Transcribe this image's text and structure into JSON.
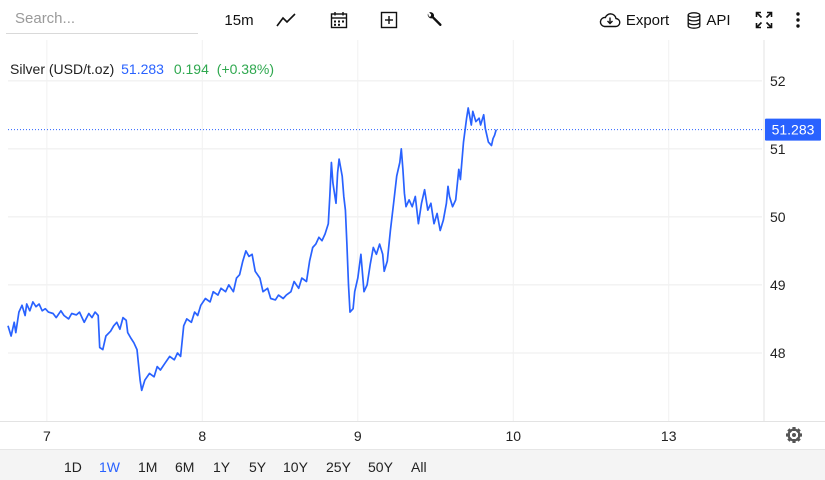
{
  "toolbar": {
    "search_placeholder": "Search...",
    "interval": "15m",
    "export_label": "Export",
    "api_label": "API"
  },
  "legend": {
    "name": "Silver (USD/t.oz)",
    "price": "51.283",
    "change": "0.194",
    "change_pct": "(+0.38%)"
  },
  "colors": {
    "line": "#2962ff",
    "change_positive": "#2fa84f"
  },
  "ranges": [
    "1D",
    "1W",
    "1M",
    "6M",
    "1Y",
    "5Y",
    "10Y",
    "25Y",
    "50Y",
    "All"
  ],
  "active_range": "1W",
  "chart_data": {
    "type": "line",
    "y_ticks": [
      "48",
      "49",
      "50",
      "51",
      "52"
    ],
    "ylim": [
      47.0,
      52.6
    ],
    "x_ticks": [
      {
        "label": "7",
        "x": 1
      },
      {
        "label": "8",
        "x": 2
      },
      {
        "label": "9",
        "x": 3
      },
      {
        "label": "10",
        "x": 4
      },
      {
        "label": "13",
        "x": 5
      }
    ],
    "xlim": [
      0.75,
      5.6
    ],
    "last_price_label": "51.283",
    "last_price": 51.283,
    "grid": true,
    "series": [
      {
        "values": [
          [
            0.75,
            48.4
          ],
          [
            0.77,
            48.25
          ],
          [
            0.79,
            48.45
          ],
          [
            0.8,
            48.3
          ],
          [
            0.82,
            48.6
          ],
          [
            0.84,
            48.7
          ],
          [
            0.86,
            48.55
          ],
          [
            0.87,
            48.72
          ],
          [
            0.89,
            48.62
          ],
          [
            0.91,
            48.75
          ],
          [
            0.93,
            48.68
          ],
          [
            0.95,
            48.72
          ],
          [
            0.97,
            48.62
          ],
          [
            0.99,
            48.65
          ],
          [
            1.01,
            48.6
          ],
          [
            1.04,
            48.58
          ],
          [
            1.06,
            48.52
          ],
          [
            1.09,
            48.62
          ],
          [
            1.11,
            48.55
          ],
          [
            1.14,
            48.5
          ],
          [
            1.16,
            48.58
          ],
          [
            1.19,
            48.56
          ],
          [
            1.21,
            48.6
          ],
          [
            1.24,
            48.45
          ],
          [
            1.27,
            48.58
          ],
          [
            1.29,
            48.52
          ],
          [
            1.31,
            48.6
          ],
          [
            1.33,
            48.55
          ],
          [
            1.34,
            48.08
          ],
          [
            1.36,
            48.05
          ],
          [
            1.38,
            48.25
          ],
          [
            1.41,
            48.32
          ],
          [
            1.43,
            48.4
          ],
          [
            1.45,
            48.45
          ],
          [
            1.47,
            48.35
          ],
          [
            1.49,
            48.52
          ],
          [
            1.51,
            48.48
          ],
          [
            1.52,
            48.3
          ],
          [
            1.54,
            48.22
          ],
          [
            1.56,
            48.15
          ],
          [
            1.58,
            48.05
          ],
          [
            1.6,
            47.6
          ],
          [
            1.61,
            47.45
          ],
          [
            1.63,
            47.6
          ],
          [
            1.66,
            47.7
          ],
          [
            1.69,
            47.65
          ],
          [
            1.71,
            47.8
          ],
          [
            1.73,
            47.75
          ],
          [
            1.76,
            47.85
          ],
          [
            1.79,
            47.95
          ],
          [
            1.82,
            47.9
          ],
          [
            1.84,
            48.0
          ],
          [
            1.86,
            47.95
          ],
          [
            1.88,
            48.4
          ],
          [
            1.9,
            48.5
          ],
          [
            1.93,
            48.45
          ],
          [
            1.95,
            48.6
          ],
          [
            1.97,
            48.55
          ],
          [
            1.99,
            48.7
          ],
          [
            2.02,
            48.8
          ],
          [
            2.05,
            48.75
          ],
          [
            2.07,
            48.9
          ],
          [
            2.1,
            48.85
          ],
          [
            2.12,
            48.95
          ],
          [
            2.15,
            48.9
          ],
          [
            2.17,
            49.0
          ],
          [
            2.2,
            48.9
          ],
          [
            2.22,
            49.1
          ],
          [
            2.24,
            49.15
          ],
          [
            2.26,
            49.35
          ],
          [
            2.28,
            49.5
          ],
          [
            2.3,
            49.42
          ],
          [
            2.32,
            49.45
          ],
          [
            2.34,
            49.2
          ],
          [
            2.37,
            49.1
          ],
          [
            2.39,
            48.9
          ],
          [
            2.42,
            48.95
          ],
          [
            2.44,
            48.8
          ],
          [
            2.47,
            48.78
          ],
          [
            2.49,
            48.85
          ],
          [
            2.52,
            48.8
          ],
          [
            2.54,
            48.85
          ],
          [
            2.57,
            48.9
          ],
          [
            2.59,
            49.05
          ],
          [
            2.62,
            48.95
          ],
          [
            2.64,
            49.1
          ],
          [
            2.67,
            49.05
          ],
          [
            2.69,
            49.35
          ],
          [
            2.71,
            49.55
          ],
          [
            2.73,
            49.6
          ],
          [
            2.75,
            49.7
          ],
          [
            2.77,
            49.65
          ],
          [
            2.79,
            49.75
          ],
          [
            2.81,
            49.9
          ],
          [
            2.82,
            50.3
          ],
          [
            2.83,
            50.8
          ],
          [
            2.84,
            50.5
          ],
          [
            2.86,
            50.2
          ],
          [
            2.87,
            50.65
          ],
          [
            2.88,
            50.85
          ],
          [
            2.9,
            50.6
          ],
          [
            2.91,
            50.3
          ],
          [
            2.92,
            50.1
          ],
          [
            2.93,
            49.6
          ],
          [
            2.94,
            49.0
          ],
          [
            2.95,
            48.6
          ],
          [
            2.97,
            48.65
          ],
          [
            2.98,
            48.9
          ],
          [
            3.0,
            49.1
          ],
          [
            3.02,
            49.45
          ],
          [
            3.04,
            48.9
          ],
          [
            3.06,
            49.0
          ],
          [
            3.08,
            49.3
          ],
          [
            3.1,
            49.55
          ],
          [
            3.12,
            49.45
          ],
          [
            3.14,
            49.6
          ],
          [
            3.16,
            49.45
          ],
          [
            3.17,
            49.2
          ],
          [
            3.19,
            49.35
          ],
          [
            3.21,
            49.8
          ],
          [
            3.23,
            50.2
          ],
          [
            3.25,
            50.6
          ],
          [
            3.27,
            50.8
          ],
          [
            3.28,
            51.0
          ],
          [
            3.29,
            50.7
          ],
          [
            3.3,
            50.35
          ],
          [
            3.31,
            50.15
          ],
          [
            3.33,
            50.25
          ],
          [
            3.35,
            50.15
          ],
          [
            3.37,
            50.3
          ],
          [
            3.39,
            49.9
          ],
          [
            3.41,
            50.2
          ],
          [
            3.43,
            50.4
          ],
          [
            3.45,
            50.1
          ],
          [
            3.47,
            50.2
          ],
          [
            3.49,
            49.9
          ],
          [
            3.51,
            50.05
          ],
          [
            3.53,
            49.8
          ],
          [
            3.55,
            49.95
          ],
          [
            3.57,
            50.2
          ],
          [
            3.58,
            50.45
          ],
          [
            3.59,
            50.3
          ],
          [
            3.61,
            50.15
          ],
          [
            3.63,
            50.25
          ],
          [
            3.65,
            50.7
          ],
          [
            3.66,
            50.55
          ],
          [
            3.68,
            51.1
          ],
          [
            3.7,
            51.45
          ],
          [
            3.71,
            51.6
          ],
          [
            3.73,
            51.35
          ],
          [
            3.74,
            51.55
          ],
          [
            3.76,
            51.4
          ],
          [
            3.78,
            51.45
          ],
          [
            3.79,
            51.35
          ],
          [
            3.81,
            51.5
          ],
          [
            3.82,
            51.3
          ],
          [
            3.84,
            51.1
          ],
          [
            3.86,
            51.05
          ],
          [
            3.87,
            51.15
          ],
          [
            3.88,
            51.2
          ],
          [
            3.89,
            51.283
          ]
        ]
      }
    ]
  }
}
